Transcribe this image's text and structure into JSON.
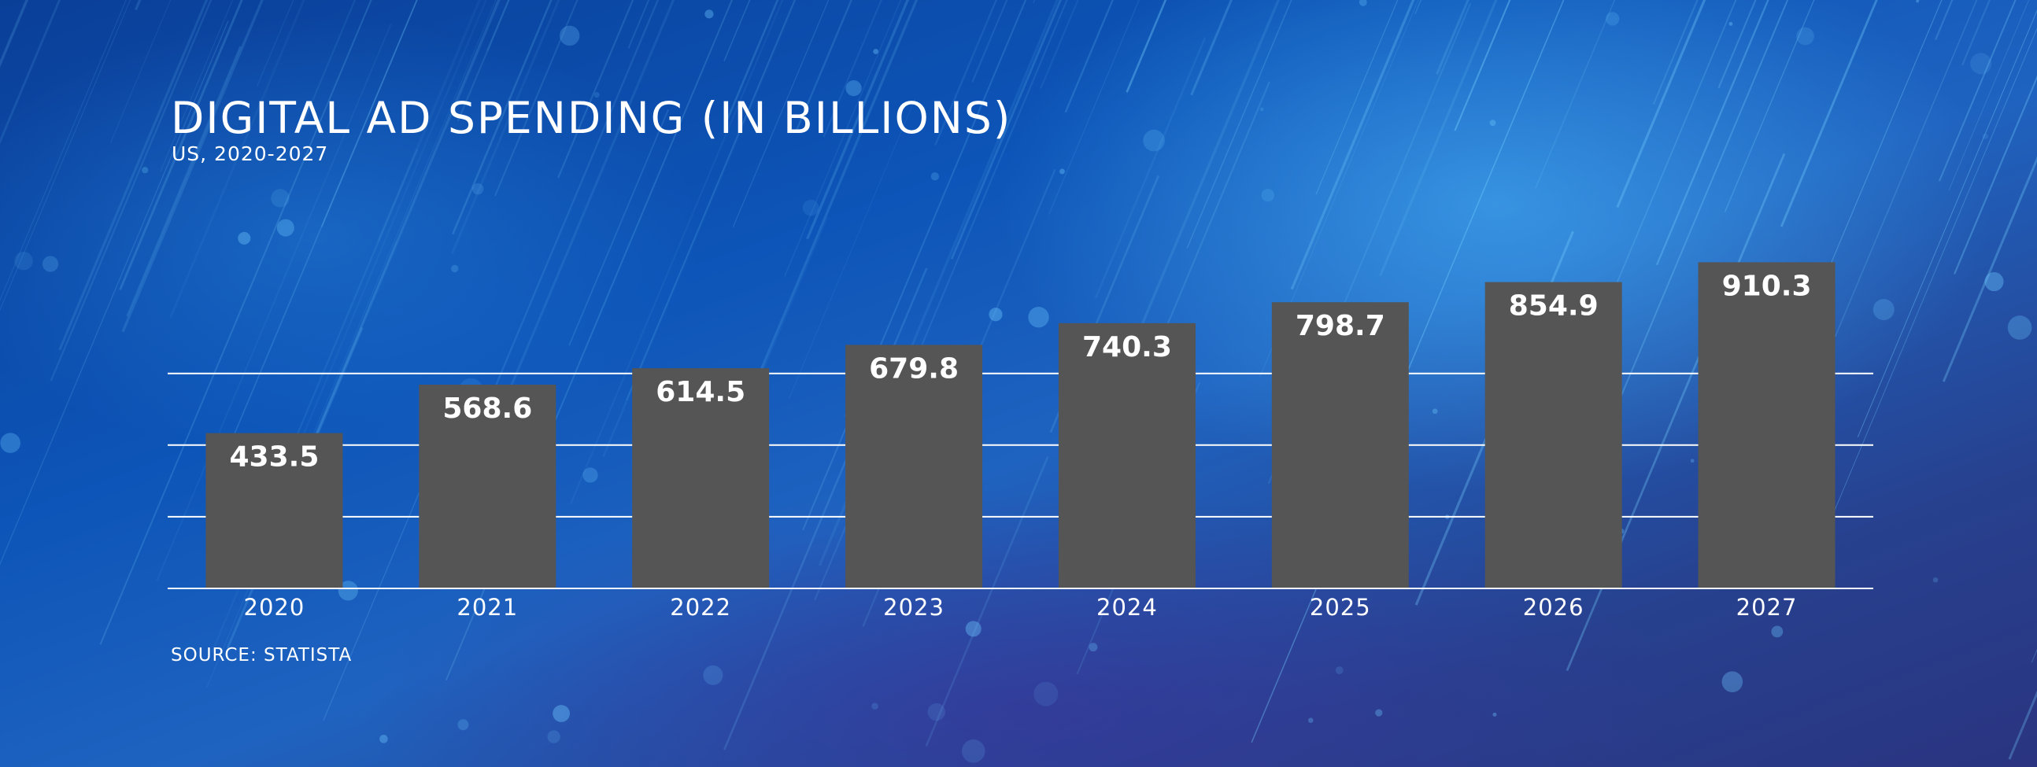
{
  "chart_data": {
    "type": "bar",
    "title": "DIGITAL AD SPENDING (IN BILLIONS)",
    "subtitle": "US, 2020-2027",
    "source": "SOURCE: STATISTA",
    "categories": [
      "2020",
      "2021",
      "2022",
      "2023",
      "2024",
      "2025",
      "2026",
      "2027"
    ],
    "values": [
      433.5,
      568.6,
      614.5,
      679.8,
      740.3,
      798.7,
      854.9,
      910.3
    ],
    "value_labels": [
      "433.5",
      "568.6",
      "614.5",
      "679.8",
      "740.3",
      "798.7",
      "854.9",
      "910.3"
    ],
    "xlabel": "",
    "ylabel": "",
    "ylim": [
      0,
      1050
    ],
    "gridlines": [
      200,
      400,
      600
    ],
    "grid": true,
    "legend": "none",
    "colors": {
      "bar": "#555555",
      "text": "#ffffff",
      "gridline": "#ffffff"
    }
  }
}
